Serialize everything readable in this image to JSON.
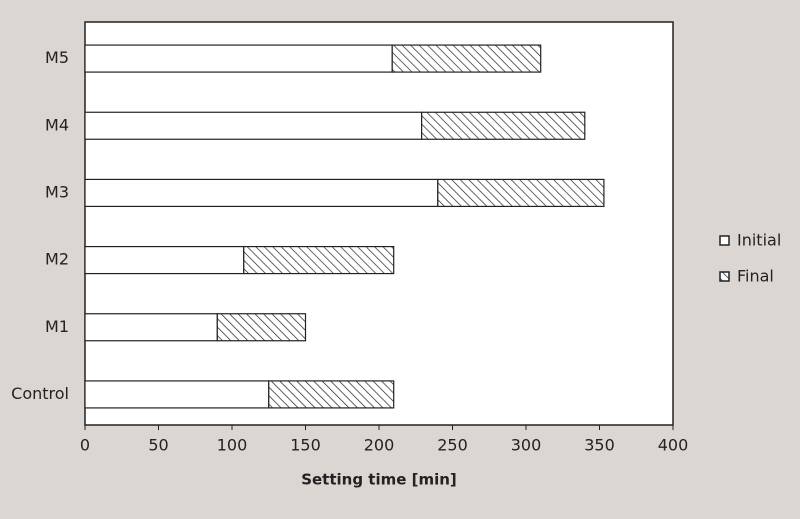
{
  "chart_data": {
    "type": "stacked-barh",
    "xlabel": "Setting time [min]",
    "categories": [
      "Control",
      "M1",
      "M2",
      "M3",
      "M4",
      "M5"
    ],
    "series": [
      {
        "name": "Initial",
        "color": "#ffffff",
        "hatch": false,
        "values": [
          125,
          90,
          108,
          240,
          229,
          209
        ]
      },
      {
        "name": "Final",
        "color": "#ffffff",
        "hatch": true,
        "values": [
          85,
          60,
          102,
          113,
          111,
          101
        ]
      }
    ],
    "xlim": [
      0,
      400
    ],
    "xticks": [
      0,
      50,
      100,
      150,
      200,
      250,
      300,
      350,
      400
    ],
    "legend": "right"
  }
}
